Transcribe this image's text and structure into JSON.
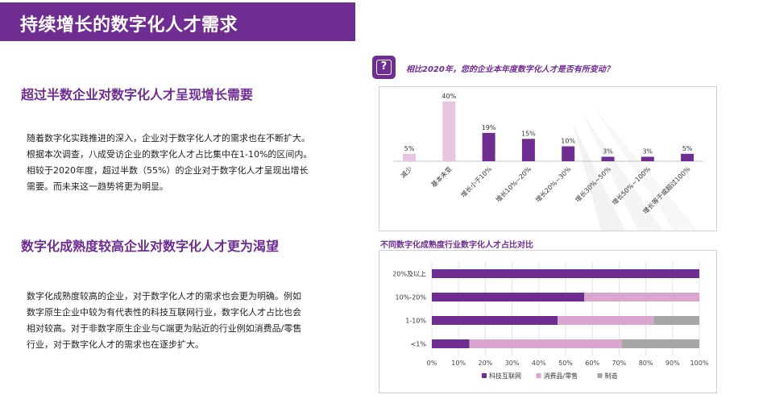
{
  "header": {
    "title": "持续增长的数字化人才需求"
  },
  "section1": {
    "heading": "超过半数企业对数字化人才呈现增长需要",
    "lines": [
      "随着数字化实践推进的深入，企业对于数字化人才的需求也在不断扩大。",
      "根据本次调查，八成受访企业的数字化人才占比集中在1-10%的区间内。",
      "相较于2020年度，超过半数（55%）的企业对于数字化人才呈现出增长",
      "需要。而未来这一趋势将更为明显。"
    ]
  },
  "section2": {
    "heading": "数字化成熟度较高企业对数字化人才更为渴望",
    "lines": [
      "数字化成熟度较高的企业，对于数字化人才的需求也会更为明确。例如",
      "数字原生企业中较为有代表性的科技互联网行业，数字化人才占比也会",
      "相对较高。对于非数字原生企业与C端更为贴近的行业例如消费品/零售",
      "行业，对于数字化人才的需求也在逐步扩大。"
    ]
  },
  "question": {
    "icon": "question-mark-icon",
    "symbol": "?",
    "text": "相比2020年，您的企业本年度数字化人才是否有所变动？"
  },
  "chart2_heading": "不同数字化成熟度行业数字化人才占比对比",
  "colors": {
    "purple": "#6f2d91",
    "light_pink": "#e8c4e2",
    "pink": "#d9a6d0",
    "gray": "#a6a6a6"
  },
  "chart_data": [
    {
      "type": "bar",
      "title": "",
      "categories": [
        "减少",
        "基本未变",
        "增长小于10%",
        "增长10%~20%",
        "增长20%~30%",
        "增长30%~50%",
        "增长50%~100%",
        "增长等于或超过100%"
      ],
      "values": [
        5,
        40,
        19,
        15,
        10,
        3,
        3,
        5
      ],
      "value_labels": [
        "5%",
        "40%",
        "19%",
        "15%",
        "10%",
        "3%",
        "3%",
        "5%"
      ],
      "bar_colors": [
        "#e8c4e2",
        "#e8c4e2",
        "#6f2d91",
        "#6f2d91",
        "#6f2d91",
        "#6f2d91",
        "#6f2d91",
        "#6f2d91"
      ],
      "ylim": [
        0,
        40
      ],
      "grid": false
    },
    {
      "type": "bar",
      "orientation": "horizontal",
      "stacked": true,
      "categories": [
        "20%及以上",
        "10%-20%",
        "1-10%",
        "<1%"
      ],
      "series": [
        {
          "name": "科技互联网",
          "color": "#6f2d91",
          "values": [
            100,
            57,
            47,
            14
          ]
        },
        {
          "name": "消费品/零售",
          "color": "#d9a6d0",
          "values": [
            0,
            43,
            36,
            57
          ]
        },
        {
          "name": "制造",
          "color": "#a6a6a6",
          "values": [
            0,
            0,
            17,
            29
          ]
        }
      ],
      "x_ticks": [
        "0%",
        "10%",
        "20%",
        "30%",
        "40%",
        "50%",
        "60%",
        "70%",
        "80%",
        "90%",
        "100%"
      ],
      "xlim": [
        0,
        100
      ],
      "grid": true,
      "legend": "bottom"
    }
  ]
}
